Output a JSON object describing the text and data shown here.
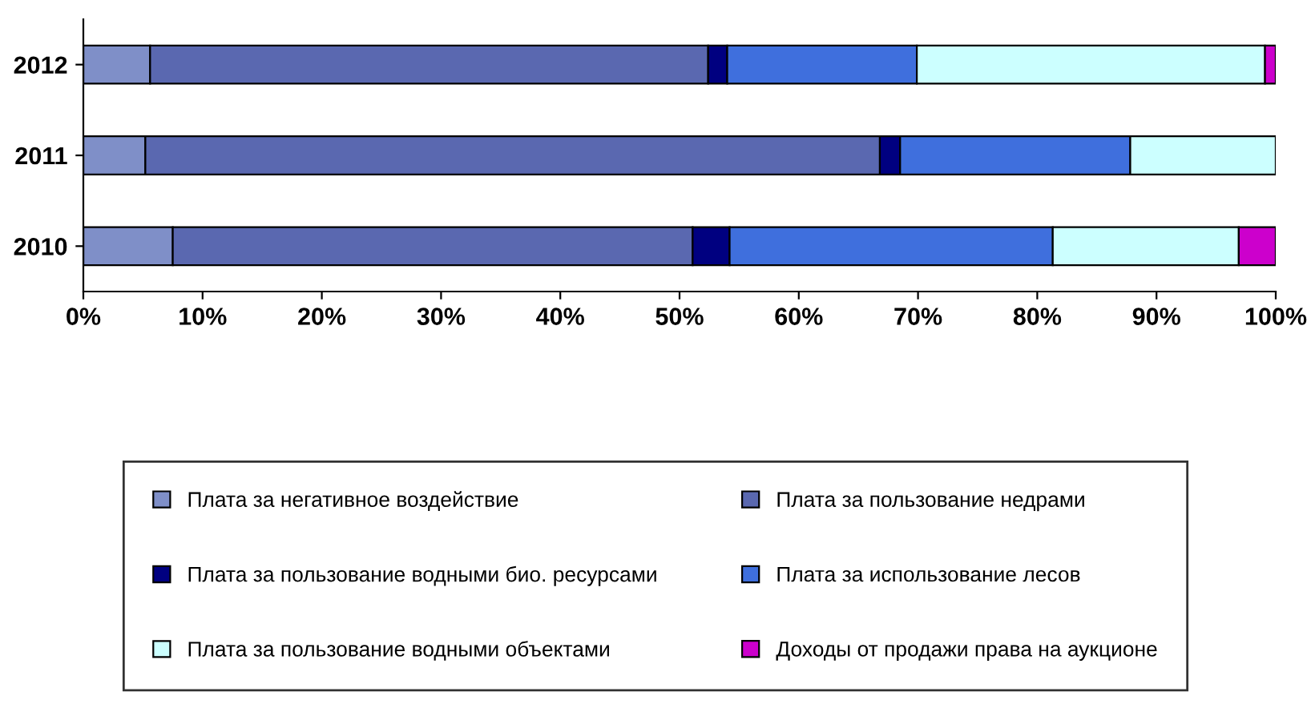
{
  "chart_data": {
    "type": "bar",
    "orientation": "horizontal",
    "stacked": true,
    "categories": [
      "2012",
      "2011",
      "2010"
    ],
    "series": [
      {
        "name": "Плата за негативное воздействие",
        "color": "#7f8fc8",
        "values": [
          5.6,
          5.2,
          7.5
        ]
      },
      {
        "name": "Плата за пользование недрами",
        "color": "#5a68b0",
        "values": [
          46.8,
          61.6,
          43.6
        ]
      },
      {
        "name": "Плата за пользование водными био. ресурсами",
        "color": "#000080",
        "values": [
          1.6,
          1.7,
          3.1
        ]
      },
      {
        "name": "Плата за использование лесов",
        "color": "#3f6fdd",
        "values": [
          15.9,
          19.3,
          27.1
        ]
      },
      {
        "name": "Плата за пользование водными объектами",
        "color": "#ccffff",
        "values": [
          29.2,
          12.2,
          15.6
        ]
      },
      {
        "name": "Доходы от продажи права на аукционе",
        "color": "#cc00cc",
        "values": [
          0.9,
          null,
          3.1
        ]
      }
    ],
    "xlim": [
      0,
      100
    ],
    "xticks": [
      {
        "value": 0,
        "label": "0%"
      },
      {
        "value": 10,
        "label": "10%"
      },
      {
        "value": 20,
        "label": "20%"
      },
      {
        "value": 30,
        "label": "30%"
      },
      {
        "value": 40,
        "label": "40%"
      },
      {
        "value": 50,
        "label": "50%"
      },
      {
        "value": 60,
        "label": "60%"
      },
      {
        "value": 70,
        "label": "70%"
      },
      {
        "value": 80,
        "label": "80%"
      },
      {
        "value": 90,
        "label": "90%"
      },
      {
        "value": 100,
        "label": "100%"
      }
    ],
    "grid": false,
    "legend": "bottom"
  }
}
